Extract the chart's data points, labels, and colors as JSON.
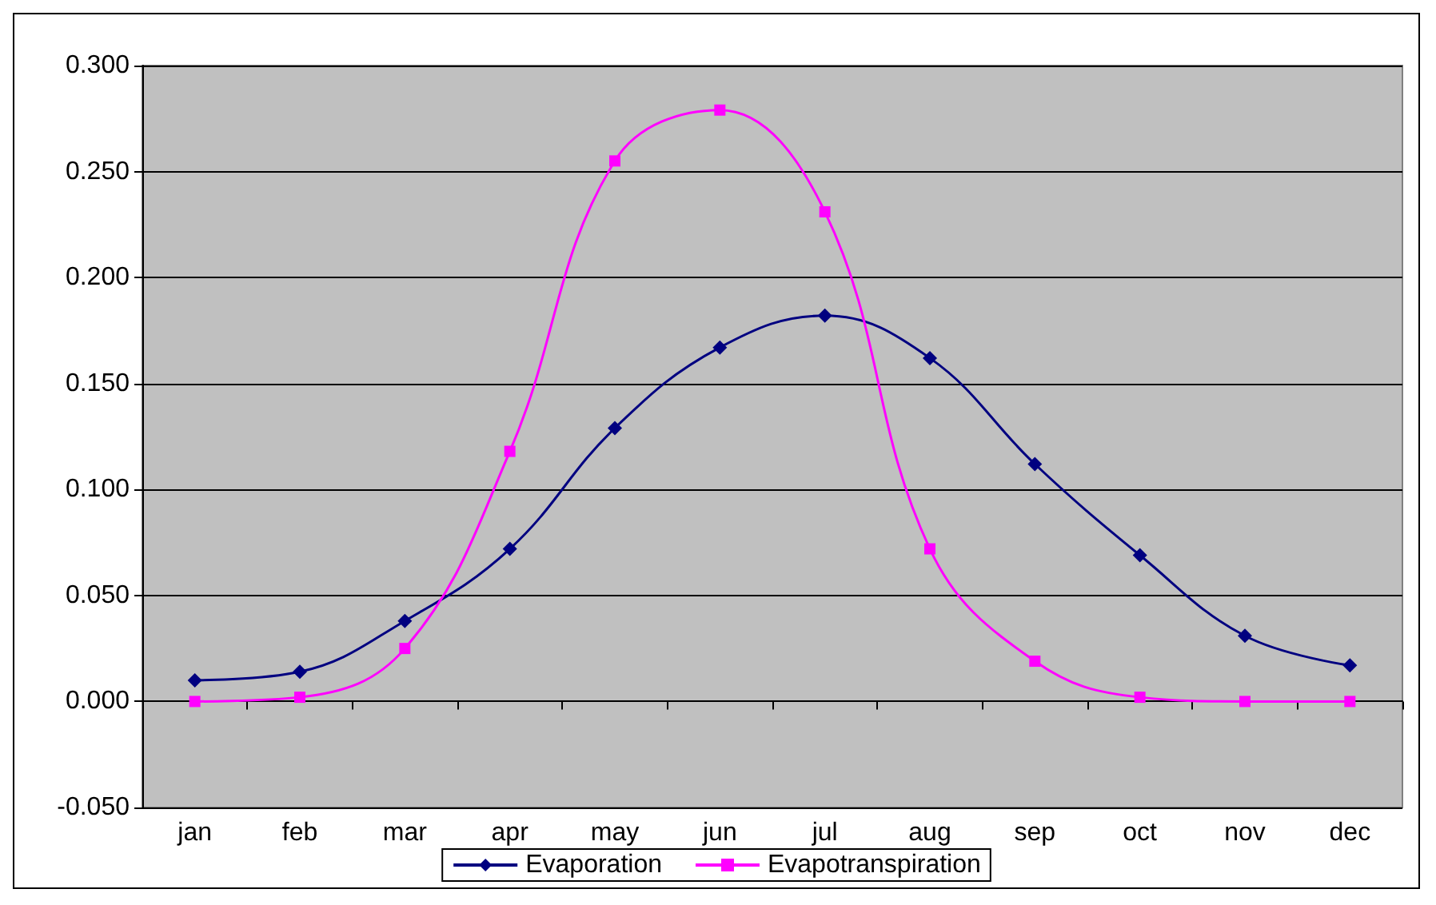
{
  "chart_data": {
    "type": "line",
    "categories": [
      "jan",
      "feb",
      "mar",
      "apr",
      "may",
      "jun",
      "jul",
      "aug",
      "sep",
      "oct",
      "nov",
      "dec"
    ],
    "series": [
      {
        "name": "Evaporation",
        "color": "#000080",
        "marker": "diamond",
        "values": [
          0.01,
          0.014,
          0.038,
          0.072,
          0.129,
          0.167,
          0.182,
          0.162,
          0.112,
          0.069,
          0.031,
          0.017
        ]
      },
      {
        "name": "Evapotranspiration",
        "color": "#ff00ff",
        "marker": "square",
        "values": [
          0.0,
          0.002,
          0.025,
          0.118,
          0.255,
          0.279,
          0.231,
          0.072,
          0.019,
          0.002,
          0.0,
          0.0
        ]
      }
    ],
    "ylim": [
      -0.05,
      0.3
    ],
    "yticks": [
      {
        "value": -0.05,
        "label": "-0.050"
      },
      {
        "value": 0,
        "label": "0.000"
      },
      {
        "value": 0.05,
        "label": "0.050"
      },
      {
        "value": 0.1,
        "label": "0.100"
      },
      {
        "value": 0.15,
        "label": "0.150"
      },
      {
        "value": 0.2,
        "label": "0.200"
      },
      {
        "value": 0.25,
        "label": "0.250"
      },
      {
        "value": 0.3,
        "label": "0.300"
      }
    ],
    "grid": "y",
    "legend": "bottom"
  }
}
